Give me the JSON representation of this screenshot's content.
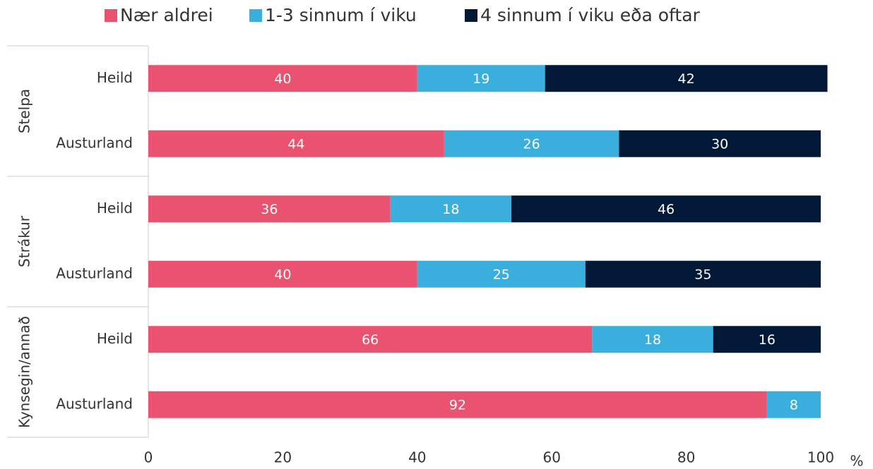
{
  "chart_data": {
    "type": "stacked-barh",
    "groups": [
      "Stelpa",
      "Strákur",
      "Kynsegin/annað"
    ],
    "categories": [
      "Heild",
      "Austurland",
      "Heild",
      "Austurland",
      "Heild",
      "Austurland"
    ],
    "series": [
      {
        "name": "Nær aldrei",
        "color": "#e95370",
        "values": [
          40,
          44,
          36,
          40,
          66,
          92
        ]
      },
      {
        "name": "1-3 sinnum í viku",
        "color": "#3aaedc",
        "values": [
          19,
          26,
          18,
          25,
          18,
          8
        ]
      },
      {
        "name": "4 sinnum í viku eða oftar",
        "color": "#011837",
        "values": [
          42,
          30,
          46,
          35,
          16,
          null
        ]
      }
    ],
    "xlim": [
      0,
      100
    ],
    "xticks": [
      0,
      20,
      40,
      60,
      80,
      100
    ],
    "xlabel": "%",
    "legend": "top"
  }
}
